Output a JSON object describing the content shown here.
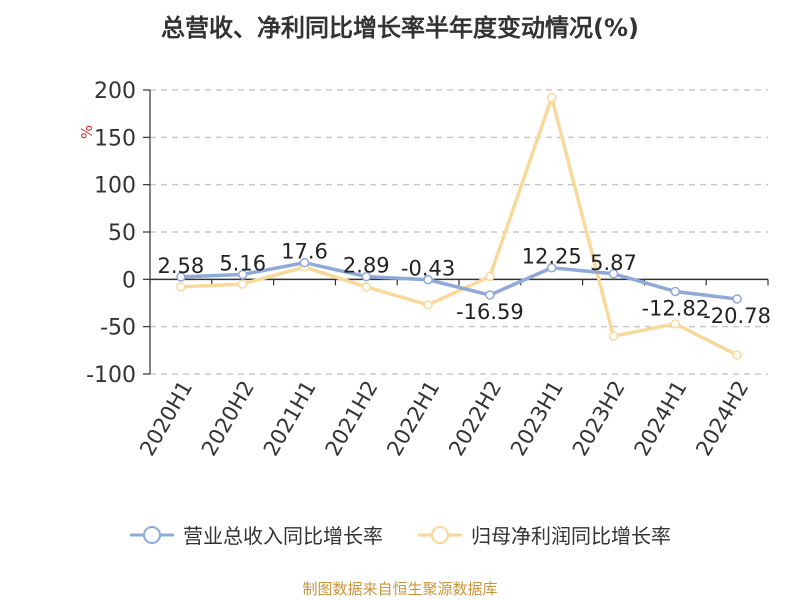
{
  "title": "总营收、净利同比增长率半年度变动情况(%)",
  "source": "制图数据来自恒生聚源数据库",
  "chart_data": {
    "type": "line",
    "y_unit_label": "%",
    "categories": [
      "2020H1",
      "2020H2",
      "2021H1",
      "2021H2",
      "2022H1",
      "2022H2",
      "2023H1",
      "2023H2",
      "2024H1",
      "2024H2"
    ],
    "ylim": [
      -100,
      200
    ],
    "yticks": [
      -100,
      -50,
      0,
      50,
      100,
      150,
      200
    ],
    "grid": true,
    "legend_position": "bottom",
    "series": [
      {
        "name": "营业总收入同比增长率",
        "color": "#8fa9d8",
        "values": [
          2.58,
          5.16,
          17.6,
          2.89,
          -0.43,
          -16.59,
          12.25,
          5.87,
          -12.82,
          -20.78
        ],
        "labels": [
          "2.58",
          "5.16",
          "17.6",
          "2.89",
          "-0.43",
          "-16.59",
          "12.25",
          "5.87",
          "-12.82",
          "-20.78"
        ]
      },
      {
        "name": "归母净利润同比增长率",
        "color": "#f9d99b",
        "values": [
          -8,
          -5,
          13,
          -8,
          -27,
          3,
          192,
          -60,
          -47,
          -80
        ]
      }
    ]
  }
}
